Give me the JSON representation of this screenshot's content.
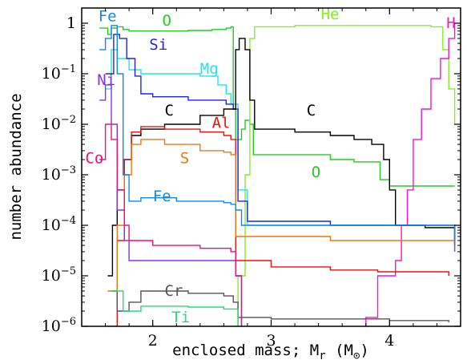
{
  "chart_data": {
    "type": "line",
    "xlabel": "enclosed mass; M",
    "xlabel_sub": "r",
    "xlabel_unit_open": " (M",
    "xlabel_unit_sub": "⊙",
    "xlabel_unit_close": ")",
    "ylabel": "number abundance",
    "x_scale": "linear",
    "y_scale": "log",
    "xlim": [
      1.4,
      4.6
    ],
    "ylim": [
      1e-06,
      2
    ],
    "grid": false,
    "x_ticks": [
      2,
      3,
      4
    ],
    "x_tick_labels": [
      "2",
      "3",
      "4"
    ],
    "y_ticks": [
      1e-06,
      1e-05,
      0.0001,
      0.001,
      0.01,
      0.1,
      1
    ],
    "y_tick_labels": [
      {
        "base": "10",
        "exp": "−6"
      },
      {
        "base": "10",
        "exp": "−5"
      },
      {
        "base": "10",
        "exp": "−4"
      },
      {
        "base": "10",
        "exp": "−3"
      },
      {
        "base": "10",
        "exp": "−2"
      },
      {
        "base": "10",
        "exp": "−1"
      },
      {
        "base": "1",
        "exp": ""
      }
    ],
    "series": [
      {
        "name": "O",
        "color": "#22cc22",
        "points": [
          [
            1.55,
            0.8
          ],
          [
            1.62,
            0.6
          ],
          [
            1.65,
            0.8
          ],
          [
            1.7,
            0.85
          ],
          [
            1.75,
            0.75
          ],
          [
            1.8,
            0.7
          ],
          [
            2.0,
            0.7
          ],
          [
            2.3,
            0.72
          ],
          [
            2.5,
            0.75
          ],
          [
            2.62,
            0.8
          ],
          [
            2.66,
            0.85
          ],
          [
            2.68,
            0.02
          ],
          [
            2.7,
            0.005
          ],
          [
            2.75,
            0.008
          ],
          [
            2.78,
            0.012
          ],
          [
            2.82,
            0.01
          ],
          [
            2.85,
            0.0025
          ],
          [
            3.2,
            0.0025
          ],
          [
            3.5,
            0.002
          ],
          [
            3.7,
            0.0018
          ],
          [
            3.85,
            0.0018
          ],
          [
            3.92,
            0.0008
          ],
          [
            4.0,
            0.0006
          ],
          [
            4.45,
            0.0006
          ],
          [
            4.55,
            0.0006
          ]
        ]
      },
      {
        "name": "He",
        "color": "#88ee22",
        "points": [
          [
            2.65,
            1e-06
          ],
          [
            2.72,
            1e-05
          ],
          [
            2.78,
            0.001
          ],
          [
            2.82,
            0.5
          ],
          [
            2.86,
            0.85
          ],
          [
            3.2,
            0.9
          ],
          [
            3.8,
            0.9
          ],
          [
            4.1,
            0.9
          ],
          [
            4.3,
            0.9
          ],
          [
            4.35,
            0.85
          ],
          [
            4.45,
            0.3
          ],
          [
            4.5,
            0.05
          ],
          [
            4.55,
            0.01
          ]
        ]
      },
      {
        "name": "H",
        "color": "#ff11cc",
        "points": [
          [
            3.8,
            1e-06
          ],
          [
            3.8,
            1.5e-06
          ],
          [
            3.9,
            1e-05
          ],
          [
            4.05,
            2e-05
          ],
          [
            4.1,
            0.0001
          ],
          [
            4.15,
            0.0005
          ],
          [
            4.2,
            0.005
          ],
          [
            4.27,
            0.02
          ],
          [
            4.35,
            0.08
          ],
          [
            4.43,
            0.2
          ],
          [
            4.5,
            0.5
          ],
          [
            4.55,
            1
          ]
        ]
      },
      {
        "name": "Mg",
        "color": "#22e6e6",
        "points": [
          [
            1.6,
            0.05
          ],
          [
            1.65,
            0.3
          ],
          [
            1.7,
            0.2
          ],
          [
            1.8,
            0.12
          ],
          [
            1.9,
            0.1
          ],
          [
            2.2,
            0.1
          ],
          [
            2.4,
            0.09
          ],
          [
            2.55,
            0.06
          ],
          [
            2.62,
            0.04
          ],
          [
            2.66,
            0.025
          ],
          [
            2.72,
            0.0005
          ],
          [
            2.8,
            0.0001
          ],
          [
            3.5,
            0.0001
          ],
          [
            4.3,
            9e-05
          ],
          [
            4.45,
            9e-05
          ],
          [
            4.55,
            5e-05
          ]
        ]
      },
      {
        "name": "Si",
        "color": "#2222ee",
        "points": [
          [
            1.6,
            0.1
          ],
          [
            1.67,
            0.6
          ],
          [
            1.72,
            0.5
          ],
          [
            1.78,
            0.2
          ],
          [
            1.85,
            0.09
          ],
          [
            1.9,
            0.04
          ],
          [
            2.0,
            0.035
          ],
          [
            2.3,
            0.03
          ],
          [
            2.55,
            0.03
          ],
          [
            2.62,
            0.025
          ],
          [
            2.68,
            0.02
          ],
          [
            2.72,
            0.0003
          ],
          [
            2.8,
            0.00012
          ],
          [
            3.5,
            0.0001
          ],
          [
            4.3,
            0.0001
          ],
          [
            4.45,
            0.0001
          ],
          [
            4.55,
            4e-05
          ]
        ]
      },
      {
        "name": "C",
        "color": "#000000",
        "points": [
          [
            1.62,
            1e-05
          ],
          [
            1.66,
            0.0001
          ],
          [
            1.7,
            0.0005
          ],
          [
            1.76,
            0.002
          ],
          [
            1.82,
            0.006
          ],
          [
            1.9,
            0.008
          ],
          [
            2.1,
            0.01
          ],
          [
            2.4,
            0.015
          ],
          [
            2.6,
            0.02
          ],
          [
            2.66,
            0.02
          ],
          [
            2.7,
            0.3
          ],
          [
            2.73,
            0.5
          ],
          [
            2.78,
            0.3
          ],
          [
            2.82,
            0.03
          ],
          [
            2.86,
            0.008
          ],
          [
            3.2,
            0.007
          ],
          [
            3.5,
            0.006
          ],
          [
            3.7,
            0.005
          ],
          [
            3.85,
            0.004
          ],
          [
            3.95,
            0.002
          ],
          [
            4.0,
            0.0005
          ],
          [
            4.05,
            0.0001
          ],
          [
            4.3,
            9e-05
          ],
          [
            4.45,
            9e-05
          ],
          [
            4.55,
            4e-05
          ]
        ]
      },
      {
        "name": "Al",
        "color": "#ee1111",
        "points": [
          [
            1.62,
            1e-06
          ],
          [
            1.7,
            5e-05
          ],
          [
            1.76,
            0.002
          ],
          [
            1.82,
            0.007
          ],
          [
            1.9,
            0.009
          ],
          [
            2.1,
            0.008
          ],
          [
            2.4,
            0.007
          ],
          [
            2.6,
            0.006
          ],
          [
            2.66,
            0.005
          ],
          [
            2.7,
            2e-05
          ],
          [
            3.0,
            1.5e-05
          ],
          [
            3.5,
            1.3e-05
          ],
          [
            3.9,
            1.2e-05
          ],
          [
            4.4,
            1.2e-05
          ],
          [
            4.5,
            1e-05
          ]
        ]
      },
      {
        "name": "S",
        "color": "#ee7711",
        "points": [
          [
            1.62,
            5e-06
          ],
          [
            1.7,
            0.0001
          ],
          [
            1.76,
            0.001
          ],
          [
            1.82,
            0.004
          ],
          [
            1.9,
            0.005
          ],
          [
            2.1,
            0.004
          ],
          [
            2.4,
            0.003
          ],
          [
            2.6,
            0.0028
          ],
          [
            2.66,
            0.0025
          ],
          [
            2.7,
            6e-05
          ],
          [
            3.5,
            5e-05
          ],
          [
            4.0,
            5e-05
          ],
          [
            4.45,
            5e-05
          ],
          [
            4.55,
            3e-05
          ]
        ]
      },
      {
        "name": "Fe",
        "color": "#1188ee",
        "points": [
          [
            1.55,
            0.3
          ],
          [
            1.6,
            0.5
          ],
          [
            1.65,
            0.9
          ],
          [
            1.7,
            0.1
          ],
          [
            1.75,
            0.001
          ],
          [
            1.8,
            0.0003
          ],
          [
            1.9,
            0.00035
          ],
          [
            2.2,
            0.0003
          ],
          [
            2.6,
            0.00028
          ],
          [
            2.66,
            0.00026
          ],
          [
            2.7,
            0.0002
          ],
          [
            2.75,
            0.0001
          ],
          [
            3.5,
            0.0001
          ],
          [
            4.45,
            0.0001
          ],
          [
            4.55,
            3e-05
          ]
        ]
      },
      {
        "name": "Cr",
        "color": "#555555",
        "points": [
          [
            1.65,
            5e-06
          ],
          [
            1.7,
            2e-06
          ],
          [
            1.8,
            3e-06
          ],
          [
            1.9,
            5e-06
          ],
          [
            2.3,
            4.5e-06
          ],
          [
            2.6,
            4e-06
          ],
          [
            2.68,
            3e-06
          ],
          [
            2.72,
            1.5e-06
          ],
          [
            3.0,
            1.4e-06
          ],
          [
            4.0,
            1.3e-06
          ],
          [
            4.5,
            1.2e-06
          ]
        ]
      },
      {
        "name": "Ti",
        "color": "#22dd77",
        "points": [
          [
            1.65,
            5e-06
          ],
          [
            1.75,
            2e-06
          ],
          [
            1.9,
            2.5e-06
          ],
          [
            2.3,
            2.4e-06
          ],
          [
            2.6,
            2.2e-06
          ],
          [
            2.72,
            1e-06
          ]
        ]
      },
      {
        "name": "Ni",
        "color": "#8833dd",
        "points": [
          [
            1.55,
            0.03
          ],
          [
            1.6,
            0.06
          ],
          [
            1.65,
            0.01
          ],
          [
            1.7,
            0.0002
          ],
          [
            1.76,
            5e-05
          ],
          [
            1.8,
            2e-05
          ],
          [
            2.0,
            2e-05
          ],
          [
            2.4,
            2e-05
          ],
          [
            2.66,
            2e-05
          ],
          [
            2.7,
            1e-05
          ],
          [
            2.75,
            1e-06
          ]
        ]
      },
      {
        "name": "Co",
        "color": "#ee1177",
        "points": [
          [
            1.55,
            0.002
          ],
          [
            1.6,
            0.01
          ],
          [
            1.65,
            0.005
          ],
          [
            1.7,
            0.0005
          ],
          [
            1.76,
            0.0001
          ],
          [
            1.8,
            5e-05
          ],
          [
            2.0,
            4e-05
          ],
          [
            2.4,
            3.5e-05
          ],
          [
            2.66,
            3e-05
          ],
          [
            2.7,
            1e-05
          ],
          [
            2.75,
            1e-06
          ]
        ]
      }
    ],
    "annotations": [
      {
        "text": "Fe",
        "color": "#1188ee",
        "x": 1.54,
        "y": 1.1
      },
      {
        "text": "O",
        "color": "#22cc22",
        "x": 2.08,
        "y": 0.9
      },
      {
        "text": "He",
        "color": "#88ee22",
        "x": 3.42,
        "y": 1.2
      },
      {
        "text": "H",
        "color": "#ff11cc",
        "x": 4.48,
        "y": 0.8
      },
      {
        "text": "Si",
        "color": "#2222ee",
        "x": 1.97,
        "y": 0.3
      },
      {
        "text": "Mg",
        "color": "#22e6e6",
        "x": 2.4,
        "y": 0.1
      },
      {
        "text": "Ni",
        "color": "#8833dd",
        "x": 1.53,
        "y": 0.06
      },
      {
        "text": "C",
        "color": "#000000",
        "x": 2.1,
        "y": 0.015
      },
      {
        "text": "Al",
        "color": "#ee1111",
        "x": 2.5,
        "y": 0.0085
      },
      {
        "text": "Co",
        "color": "#ee1177",
        "x": 1.43,
        "y": 0.0017
      },
      {
        "text": "S",
        "color": "#ee7711",
        "x": 2.23,
        "y": 0.0017
      },
      {
        "text": "C",
        "color": "#000000",
        "x": 3.3,
        "y": 0.015
      },
      {
        "text": "O",
        "color": "#22cc22",
        "x": 3.34,
        "y": 0.0009
      },
      {
        "text": "Fe",
        "color": "#1188ee",
        "x": 2.0,
        "y": 0.0003
      },
      {
        "text": "Cr",
        "color": "#555555",
        "x": 2.1,
        "y": 4e-06
      },
      {
        "text": "Ti",
        "color": "#22dd77",
        "x": 2.16,
        "y": 1.2e-06
      }
    ]
  }
}
